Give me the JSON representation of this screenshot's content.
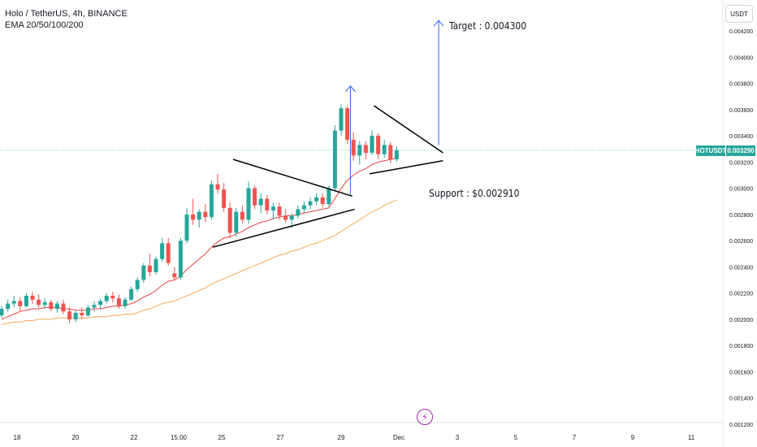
{
  "legend": {
    "symbol_line": "Holo / TetherUS, 4h, BINANCE",
    "indicator_line": "EMA 20/50/100/200"
  },
  "currency_label": "USDT",
  "last_price": {
    "ticker": "HOTUSDT",
    "value": "0.003290"
  },
  "annotations": {
    "target": "Target : 0.004300",
    "support": "Support : $0.002910"
  },
  "event_icon": "lightning-icon",
  "colors": {
    "up": "#26a69a",
    "down": "#ef5350",
    "ema20": "#e94040",
    "ema50": "#f6a756",
    "arrow": "#2962ff",
    "trendline": "#000000",
    "priceline": "#26a69a"
  },
  "chart_data": {
    "type": "candlestick",
    "title": "Holo / TetherUS, 4h, BINANCE",
    "y_axis": {
      "ticks": [
        "0.001200",
        "0.001400",
        "0.001600",
        "0.001800",
        "0.002000",
        "0.002200",
        "0.002400",
        "0.002600",
        "0.002800",
        "0.003000",
        "0.003200",
        "0.003400",
        "0.003600",
        "0.003800",
        "0.004000",
        "0.004200"
      ],
      "ylim": [
        0.00118,
        0.00433
      ]
    },
    "x_axis": {
      "ticks": [
        "18",
        "20",
        "22",
        "15:00",
        "25",
        "27",
        "29",
        "Dec",
        "3",
        "5",
        "7",
        "9",
        "11"
      ]
    },
    "candles": [
      [
        0.00203,
        0.0021,
        0.00201,
        0.00208
      ],
      [
        0.00208,
        0.00215,
        0.00206,
        0.00212
      ],
      [
        0.00212,
        0.00218,
        0.00209,
        0.00214
      ],
      [
        0.00214,
        0.00217,
        0.00206,
        0.0021
      ],
      [
        0.0021,
        0.0022,
        0.00209,
        0.00218
      ],
      [
        0.00218,
        0.00221,
        0.00212,
        0.00215
      ],
      [
        0.00215,
        0.00219,
        0.00209,
        0.00211
      ],
      [
        0.00211,
        0.00216,
        0.00208,
        0.00213
      ],
      [
        0.00213,
        0.00215,
        0.00206,
        0.00208
      ],
      [
        0.00208,
        0.00214,
        0.00205,
        0.00212
      ],
      [
        0.00212,
        0.00215,
        0.00204,
        0.00206
      ],
      [
        0.00206,
        0.00209,
        0.00197,
        0.002
      ],
      [
        0.002,
        0.00207,
        0.00198,
        0.00205
      ],
      [
        0.00205,
        0.00209,
        0.002,
        0.00203
      ],
      [
        0.00203,
        0.00211,
        0.00202,
        0.00209
      ],
      [
        0.00209,
        0.00214,
        0.00206,
        0.00211
      ],
      [
        0.00211,
        0.00216,
        0.00208,
        0.00214
      ],
      [
        0.00214,
        0.0022,
        0.00212,
        0.00218
      ],
      [
        0.00218,
        0.00221,
        0.00213,
        0.00216
      ],
      [
        0.00216,
        0.00219,
        0.00208,
        0.0021
      ],
      [
        0.0021,
        0.00217,
        0.00208,
        0.00215
      ],
      [
        0.00215,
        0.00225,
        0.00214,
        0.00223
      ],
      [
        0.00223,
        0.00232,
        0.00221,
        0.0023
      ],
      [
        0.0023,
        0.00243,
        0.00228,
        0.00241
      ],
      [
        0.00241,
        0.0025,
        0.00233,
        0.00236
      ],
      [
        0.00236,
        0.00248,
        0.00234,
        0.00246
      ],
      [
        0.00246,
        0.00262,
        0.00244,
        0.00258
      ],
      [
        0.00258,
        0.00262,
        0.00241,
        0.00243
      ],
      [
        0.00235,
        0.0024,
        0.0023,
        0.00232
      ],
      [
        0.00232,
        0.00262,
        0.0023,
        0.0026
      ],
      [
        0.0026,
        0.00285,
        0.00258,
        0.0028
      ],
      [
        0.0028,
        0.00292,
        0.00272,
        0.00276
      ],
      [
        0.00276,
        0.00284,
        0.0027,
        0.00282
      ],
      [
        0.00282,
        0.00288,
        0.00274,
        0.00278
      ],
      [
        0.00278,
        0.00306,
        0.00276,
        0.00303
      ],
      [
        0.00303,
        0.00311,
        0.00296,
        0.00299
      ],
      [
        0.00299,
        0.00304,
        0.00282,
        0.00285
      ],
      [
        0.00285,
        0.00289,
        0.00262,
        0.00266
      ],
      [
        0.00266,
        0.00285,
        0.00263,
        0.00282
      ],
      [
        0.00282,
        0.00287,
        0.00273,
        0.00276
      ],
      [
        0.00276,
        0.00305,
        0.00273,
        0.003
      ],
      [
        0.003,
        0.00302,
        0.00284,
        0.00287
      ],
      [
        0.00287,
        0.00296,
        0.00281,
        0.00292
      ],
      [
        0.00292,
        0.00295,
        0.0028,
        0.00283
      ],
      [
        0.00283,
        0.00289,
        0.00276,
        0.00286
      ],
      [
        0.00286,
        0.00289,
        0.00276,
        0.00279
      ],
      [
        0.00279,
        0.00284,
        0.00274,
        0.00276
      ],
      [
        0.00276,
        0.00281,
        0.0027,
        0.00279
      ],
      [
        0.00279,
        0.00287,
        0.00277,
        0.00284
      ],
      [
        0.00284,
        0.0029,
        0.00281,
        0.00287
      ],
      [
        0.00287,
        0.00293,
        0.00284,
        0.0029
      ],
      [
        0.0029,
        0.00296,
        0.00287,
        0.00293
      ],
      [
        0.00293,
        0.00296,
        0.00285,
        0.00288
      ],
      [
        0.00288,
        0.00302,
        0.00286,
        0.003
      ],
      [
        0.003,
        0.00348,
        0.00298,
        0.00344
      ],
      [
        0.00344,
        0.00364,
        0.0034,
        0.00361
      ],
      [
        0.00361,
        0.00363,
        0.00334,
        0.00337
      ],
      [
        0.00337,
        0.00343,
        0.00321,
        0.00325
      ],
      [
        0.00325,
        0.00336,
        0.00318,
        0.00333
      ],
      [
        0.00333,
        0.00336,
        0.00322,
        0.00327
      ],
      [
        0.00327,
        0.00344,
        0.00325,
        0.0034
      ],
      [
        0.0034,
        0.00342,
        0.00322,
        0.00326
      ],
      [
        0.00326,
        0.00337,
        0.00323,
        0.00333
      ],
      [
        0.00333,
        0.00335,
        0.00319,
        0.00322
      ],
      [
        0.00322,
        0.00332,
        0.0032,
        0.00329
      ]
    ],
    "ema20": [
      0.002,
      0.00202,
      0.00204,
      0.00206,
      0.00207,
      0.00208,
      0.00208,
      0.00209,
      0.00209,
      0.00209,
      0.00208,
      0.00208,
      0.00207,
      0.00207,
      0.00207,
      0.00208,
      0.00208,
      0.00209,
      0.0021,
      0.0021,
      0.00211,
      0.00212,
      0.00214,
      0.00217,
      0.00219,
      0.00222,
      0.00226,
      0.00229,
      0.0023,
      0.00233,
      0.00238,
      0.00242,
      0.00246,
      0.0025,
      0.00255,
      0.00259,
      0.00262,
      0.00263,
      0.00265,
      0.00267,
      0.0027,
      0.00272,
      0.00274,
      0.00275,
      0.00277,
      0.00278,
      0.00279,
      0.00279,
      0.0028,
      0.00281,
      0.00282,
      0.00283,
      0.00284,
      0.00285,
      0.00292,
      0.003,
      0.00306,
      0.0031,
      0.00313,
      0.00315,
      0.00318,
      0.0032,
      0.00321,
      0.00322,
      0.00323
    ],
    "ema50": [
      0.00196,
      0.00197,
      0.00198,
      0.00198,
      0.00199,
      0.00199,
      0.002,
      0.002,
      0.002,
      0.00201,
      0.00201,
      0.00201,
      0.00201,
      0.00201,
      0.00201,
      0.00202,
      0.00202,
      0.00202,
      0.00203,
      0.00203,
      0.00204,
      0.00204,
      0.00205,
      0.00207,
      0.00208,
      0.0021,
      0.00212,
      0.00213,
      0.00214,
      0.00216,
      0.00218,
      0.0022,
      0.00222,
      0.00224,
      0.00227,
      0.00229,
      0.00231,
      0.00233,
      0.00235,
      0.00237,
      0.00239,
      0.00241,
      0.00243,
      0.00245,
      0.00247,
      0.00249,
      0.0025,
      0.00252,
      0.00253,
      0.00255,
      0.00257,
      0.00258,
      0.0026,
      0.00262,
      0.00264,
      0.00267,
      0.0027,
      0.00273,
      0.00276,
      0.00279,
      0.00282,
      0.00284,
      0.00287,
      0.00289,
      0.00291
    ]
  }
}
